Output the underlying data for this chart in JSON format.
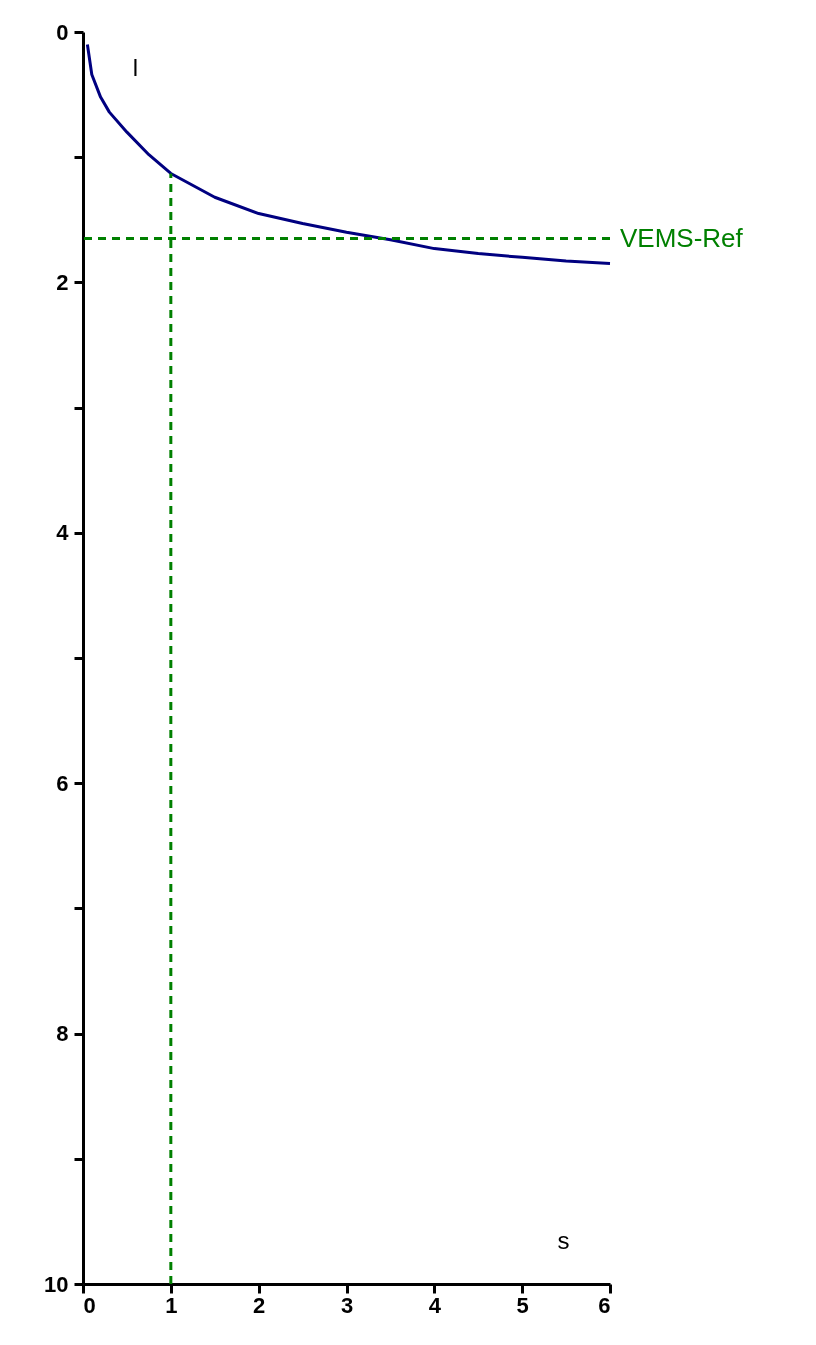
{
  "chart_data": {
    "type": "line",
    "xlabel": "s",
    "ylabel": "l",
    "series": [
      {
        "color": "#000080",
        "x": [
          0.05,
          0.1,
          0.2,
          0.3,
          0.5,
          0.75,
          1,
          1.5,
          2,
          2.5,
          3,
          3.5,
          4,
          4.5,
          5,
          5.5,
          6
        ],
        "values": [
          0.1,
          0.34,
          0.52,
          0.64,
          0.8,
          0.98,
          1.13,
          1.32,
          1.45,
          1.53,
          1.6,
          1.66,
          1.73,
          1.77,
          1.8,
          1.83,
          1.85
        ]
      }
    ],
    "xlim": [
      0,
      6
    ],
    "xticks": [
      0,
      1,
      2,
      3,
      4,
      5,
      6
    ],
    "ylim": [
      10,
      0
    ],
    "yticks": [
      0,
      {
        "value": 1,
        "label": null
      },
      2,
      {
        "value": 3,
        "label": null
      },
      4,
      {
        "value": 5,
        "label": null
      },
      6,
      {
        "value": 7,
        "label": null
      },
      8,
      {
        "value": 9,
        "label": null
      },
      10
    ],
    "ref_lines": [
      {
        "axis": "y",
        "value": 1.65,
        "label": "VEMS-Ref",
        "color": "#008000",
        "line_style": "dashed"
      },
      {
        "axis": "x",
        "value": 1,
        "color": "#008000",
        "line_style": "dashed"
      }
    ],
    "grid": false,
    "marker": "none",
    "line_style": "solid"
  }
}
